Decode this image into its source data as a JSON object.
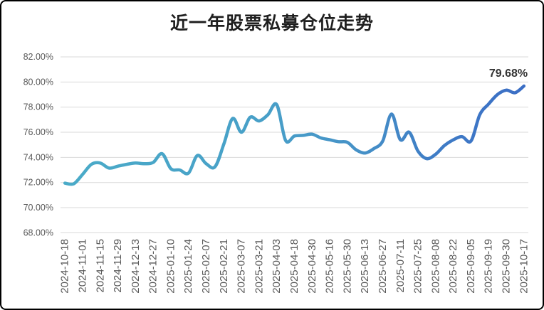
{
  "colors": {
    "background": "#FFFFFF",
    "border": "#000000",
    "grid": "#D9D9D9",
    "axis_text": "#595959",
    "title_text": "#1F1F1F",
    "data_label_text": "#333333",
    "line_gradient_stops": [
      [
        "0%",
        "#4AABC8"
      ],
      [
        "45%",
        "#489FC8"
      ],
      [
        "65%",
        "#4590C7"
      ],
      [
        "80%",
        "#3F7DC6"
      ],
      [
        "100%",
        "#3B6EC5"
      ]
    ]
  },
  "chart_data": {
    "type": "line",
    "title": "近一年股票私募仓位走势",
    "xlabel": "",
    "ylabel": "",
    "grid": true,
    "legend": false,
    "smooth_line": true,
    "y_axis": {
      "min": 68,
      "max": 82,
      "step": 2,
      "tick_labels": [
        "68.00%",
        "70.00%",
        "72.00%",
        "74.00%",
        "76.00%",
        "78.00%",
        "80.00%",
        "82.00%"
      ]
    },
    "x_tick_labels": [
      "2024-10-18",
      "2024-11-01",
      "2024-11-15",
      "2024-11-29",
      "2024-12-13",
      "2024-12-27",
      "2025-01-10",
      "2025-01-24",
      "2025-02-07",
      "2025-02-21",
      "2025-03-07",
      "2025-03-21",
      "2025-04-03",
      "2025-04-18",
      "2025-04-30",
      "2025-05-16",
      "2025-05-30",
      "2025-06-13",
      "2025-06-27",
      "2025-07-11",
      "2025-07-25",
      "2025-08-08",
      "2025-08-22",
      "2025-09-05",
      "2025-09-19",
      "2025-09-30",
      "2025-10-17"
    ],
    "x_label_every": 2,
    "series": [
      {
        "values": [
          71.95,
          71.9,
          72.65,
          73.45,
          73.55,
          73.15,
          73.3,
          73.45,
          73.55,
          73.5,
          73.6,
          74.3,
          73.1,
          73.0,
          72.75,
          74.15,
          73.5,
          73.25,
          75.05,
          77.1,
          76.0,
          77.2,
          76.9,
          77.4,
          78.2,
          75.35,
          75.7,
          75.75,
          75.85,
          75.55,
          75.4,
          75.25,
          75.2,
          74.6,
          74.35,
          74.7,
          75.3,
          77.45,
          75.4,
          76.0,
          74.5,
          73.9,
          74.25,
          74.95,
          75.4,
          75.65,
          75.3,
          77.4,
          78.25,
          79.0,
          79.35,
          79.15,
          79.68
        ]
      }
    ],
    "last_point_label": "79.68%"
  }
}
